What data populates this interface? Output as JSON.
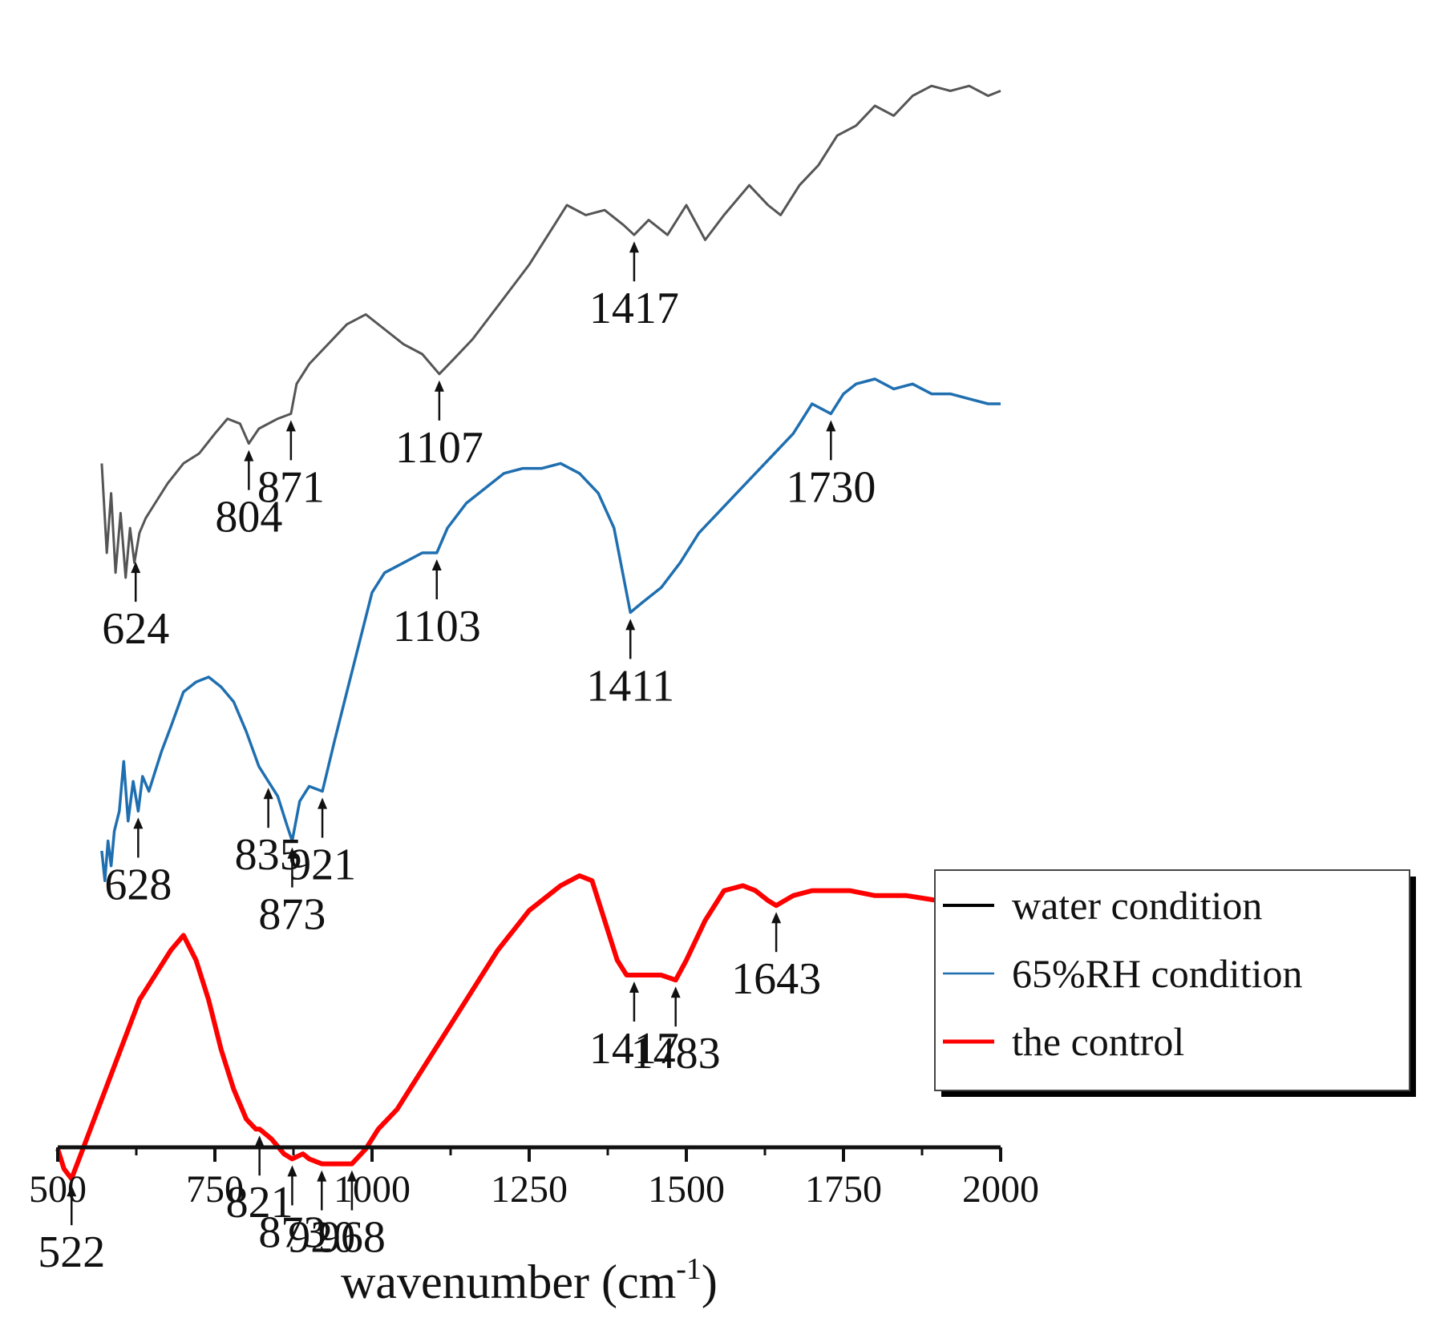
{
  "chart_data": {
    "type": "line",
    "title": "",
    "xlabel": "wavenumber (cm",
    "xlabel_sup": "-1",
    "xlabel_close": ")",
    "ylabel": "",
    "xlim": [
      500,
      2000
    ],
    "xticks": [
      500,
      750,
      1000,
      1250,
      1500,
      1750,
      2000
    ],
    "xtick_labels": [
      "500",
      "750",
      "1000",
      "1250",
      "1500",
      "1750",
      "2000"
    ],
    "legend": {
      "position": "lower-right",
      "entries": [
        {
          "label": "water condition",
          "color": "#000000"
        },
        {
          "label": "65%RH condition",
          "color": "#1f6fb0"
        },
        {
          "label": "the control",
          "color": "#ff0000"
        }
      ]
    },
    "series": [
      {
        "name": "water condition",
        "color": "#555555",
        "x": [
          570,
          578,
          585,
          592,
          600,
          608,
          615,
          622,
          630,
          640,
          655,
          675,
          700,
          725,
          750,
          770,
          790,
          804,
          820,
          850,
          871,
          880,
          900,
          930,
          960,
          990,
          1020,
          1050,
          1080,
          1107,
          1130,
          1160,
          1190,
          1220,
          1250,
          1270,
          1290,
          1310,
          1340,
          1370,
          1400,
          1417,
          1440,
          1470,
          1500,
          1530,
          1560,
          1600,
          1630,
          1650,
          1680,
          1710,
          1740,
          1770,
          1800,
          1830,
          1860,
          1890,
          1920,
          1950,
          1980,
          2000
        ],
        "y": [
          0.68,
          0.5,
          0.62,
          0.46,
          0.58,
          0.45,
          0.55,
          0.48,
          0.54,
          0.57,
          0.6,
          0.64,
          0.68,
          0.7,
          0.74,
          0.77,
          0.76,
          0.72,
          0.75,
          0.77,
          0.78,
          0.84,
          0.88,
          0.92,
          0.96,
          0.98,
          0.95,
          0.92,
          0.9,
          0.86,
          0.89,
          0.93,
          0.98,
          1.03,
          1.08,
          1.12,
          1.16,
          1.2,
          1.18,
          1.19,
          1.16,
          1.14,
          1.17,
          1.14,
          1.2,
          1.13,
          1.18,
          1.24,
          1.2,
          1.18,
          1.24,
          1.28,
          1.34,
          1.36,
          1.4,
          1.38,
          1.42,
          1.44,
          1.43,
          1.44,
          1.42,
          1.43
        ]
      },
      {
        "name": "65%RH condition",
        "color": "#1f6fb0",
        "x": [
          570,
          575,
          580,
          585,
          590,
          598,
          605,
          612,
          620,
          628,
          635,
          645,
          655,
          665,
          680,
          700,
          720,
          740,
          760,
          780,
          800,
          820,
          835,
          850,
          865,
          873,
          885,
          900,
          921,
          940,
          960,
          980,
          1000,
          1020,
          1050,
          1080,
          1103,
          1120,
          1150,
          1180,
          1210,
          1240,
          1270,
          1300,
          1330,
          1360,
          1385,
          1411,
          1430,
          1460,
          1490,
          1520,
          1550,
          1580,
          1610,
          1640,
          1670,
          1700,
          1730,
          1750,
          1770,
          1800,
          1830,
          1860,
          1890,
          1920,
          1950,
          1980,
          2000
        ],
        "y": [
          -0.1,
          -0.16,
          -0.08,
          -0.13,
          -0.06,
          -0.02,
          0.08,
          -0.04,
          0.04,
          -0.02,
          0.05,
          0.02,
          0.06,
          0.1,
          0.15,
          0.22,
          0.24,
          0.25,
          0.23,
          0.2,
          0.14,
          0.07,
          0.04,
          0.01,
          -0.05,
          -0.08,
          0.0,
          0.03,
          0.02,
          0.12,
          0.22,
          0.32,
          0.42,
          0.46,
          0.48,
          0.5,
          0.5,
          0.55,
          0.6,
          0.63,
          0.66,
          0.67,
          0.67,
          0.68,
          0.66,
          0.62,
          0.55,
          0.38,
          0.4,
          0.43,
          0.48,
          0.54,
          0.58,
          0.62,
          0.66,
          0.7,
          0.74,
          0.8,
          0.78,
          0.82,
          0.84,
          0.85,
          0.83,
          0.84,
          0.82,
          0.82,
          0.81,
          0.8,
          0.8
        ]
      },
      {
        "name": "the control",
        "color": "#ff0000",
        "x": [
          500,
          510,
          522,
          540,
          570,
          600,
          630,
          660,
          680,
          700,
          720,
          740,
          760,
          780,
          800,
          815,
          821,
          840,
          860,
          873,
          890,
          900,
          920,
          940,
          968,
          990,
          1010,
          1040,
          1060,
          1100,
          1150,
          1200,
          1250,
          1300,
          1330,
          1350,
          1370,
          1390,
          1405,
          1417,
          1440,
          1460,
          1483,
          1500,
          1530,
          1560,
          1590,
          1610,
          1630,
          1643,
          1670,
          1700,
          1730,
          1760,
          1800,
          1850,
          1900,
          1950,
          2000
        ],
        "y": [
          -0.7,
          -0.74,
          -0.76,
          -0.7,
          -0.6,
          -0.5,
          -0.4,
          -0.34,
          -0.3,
          -0.27,
          -0.32,
          -0.4,
          -0.5,
          -0.58,
          -0.64,
          -0.66,
          -0.66,
          -0.68,
          -0.71,
          -0.72,
          -0.71,
          -0.72,
          -0.73,
          -0.73,
          -0.73,
          -0.7,
          -0.66,
          -0.62,
          -0.58,
          -0.5,
          -0.4,
          -0.3,
          -0.22,
          -0.17,
          -0.15,
          -0.16,
          -0.24,
          -0.32,
          -0.35,
          -0.35,
          -0.35,
          -0.35,
          -0.36,
          -0.32,
          -0.24,
          -0.18,
          -0.17,
          -0.18,
          -0.2,
          -0.21,
          -0.19,
          -0.18,
          -0.18,
          -0.18,
          -0.19,
          -0.19,
          -0.2,
          -0.2,
          -0.2
        ]
      }
    ],
    "annotations": [
      {
        "series": 0,
        "label": "624",
        "x": 624
      },
      {
        "series": 0,
        "label": "804",
        "x": 804
      },
      {
        "series": 0,
        "label": "871",
        "x": 871
      },
      {
        "series": 0,
        "label": "1107",
        "x": 1107
      },
      {
        "series": 0,
        "label": "1417",
        "x": 1417
      },
      {
        "series": 1,
        "label": "628",
        "x": 628
      },
      {
        "series": 1,
        "label": "835",
        "x": 835
      },
      {
        "series": 1,
        "label": "873",
        "x": 873
      },
      {
        "series": 1,
        "label": "921",
        "x": 921
      },
      {
        "series": 1,
        "label": "1103",
        "x": 1103
      },
      {
        "series": 1,
        "label": "1411",
        "x": 1411
      },
      {
        "series": 1,
        "label": "1730",
        "x": 1730
      },
      {
        "series": 2,
        "label": "522",
        "x": 522
      },
      {
        "series": 2,
        "label": "821",
        "x": 821
      },
      {
        "series": 2,
        "label": "873",
        "x": 873
      },
      {
        "series": 2,
        "label": "920",
        "x": 920
      },
      {
        "series": 2,
        "label": "968",
        "x": 968
      },
      {
        "series": 2,
        "label": "1417",
        "x": 1417
      },
      {
        "series": 2,
        "label": "1483",
        "x": 1483
      },
      {
        "series": 2,
        "label": "1643",
        "x": 1643
      }
    ]
  }
}
